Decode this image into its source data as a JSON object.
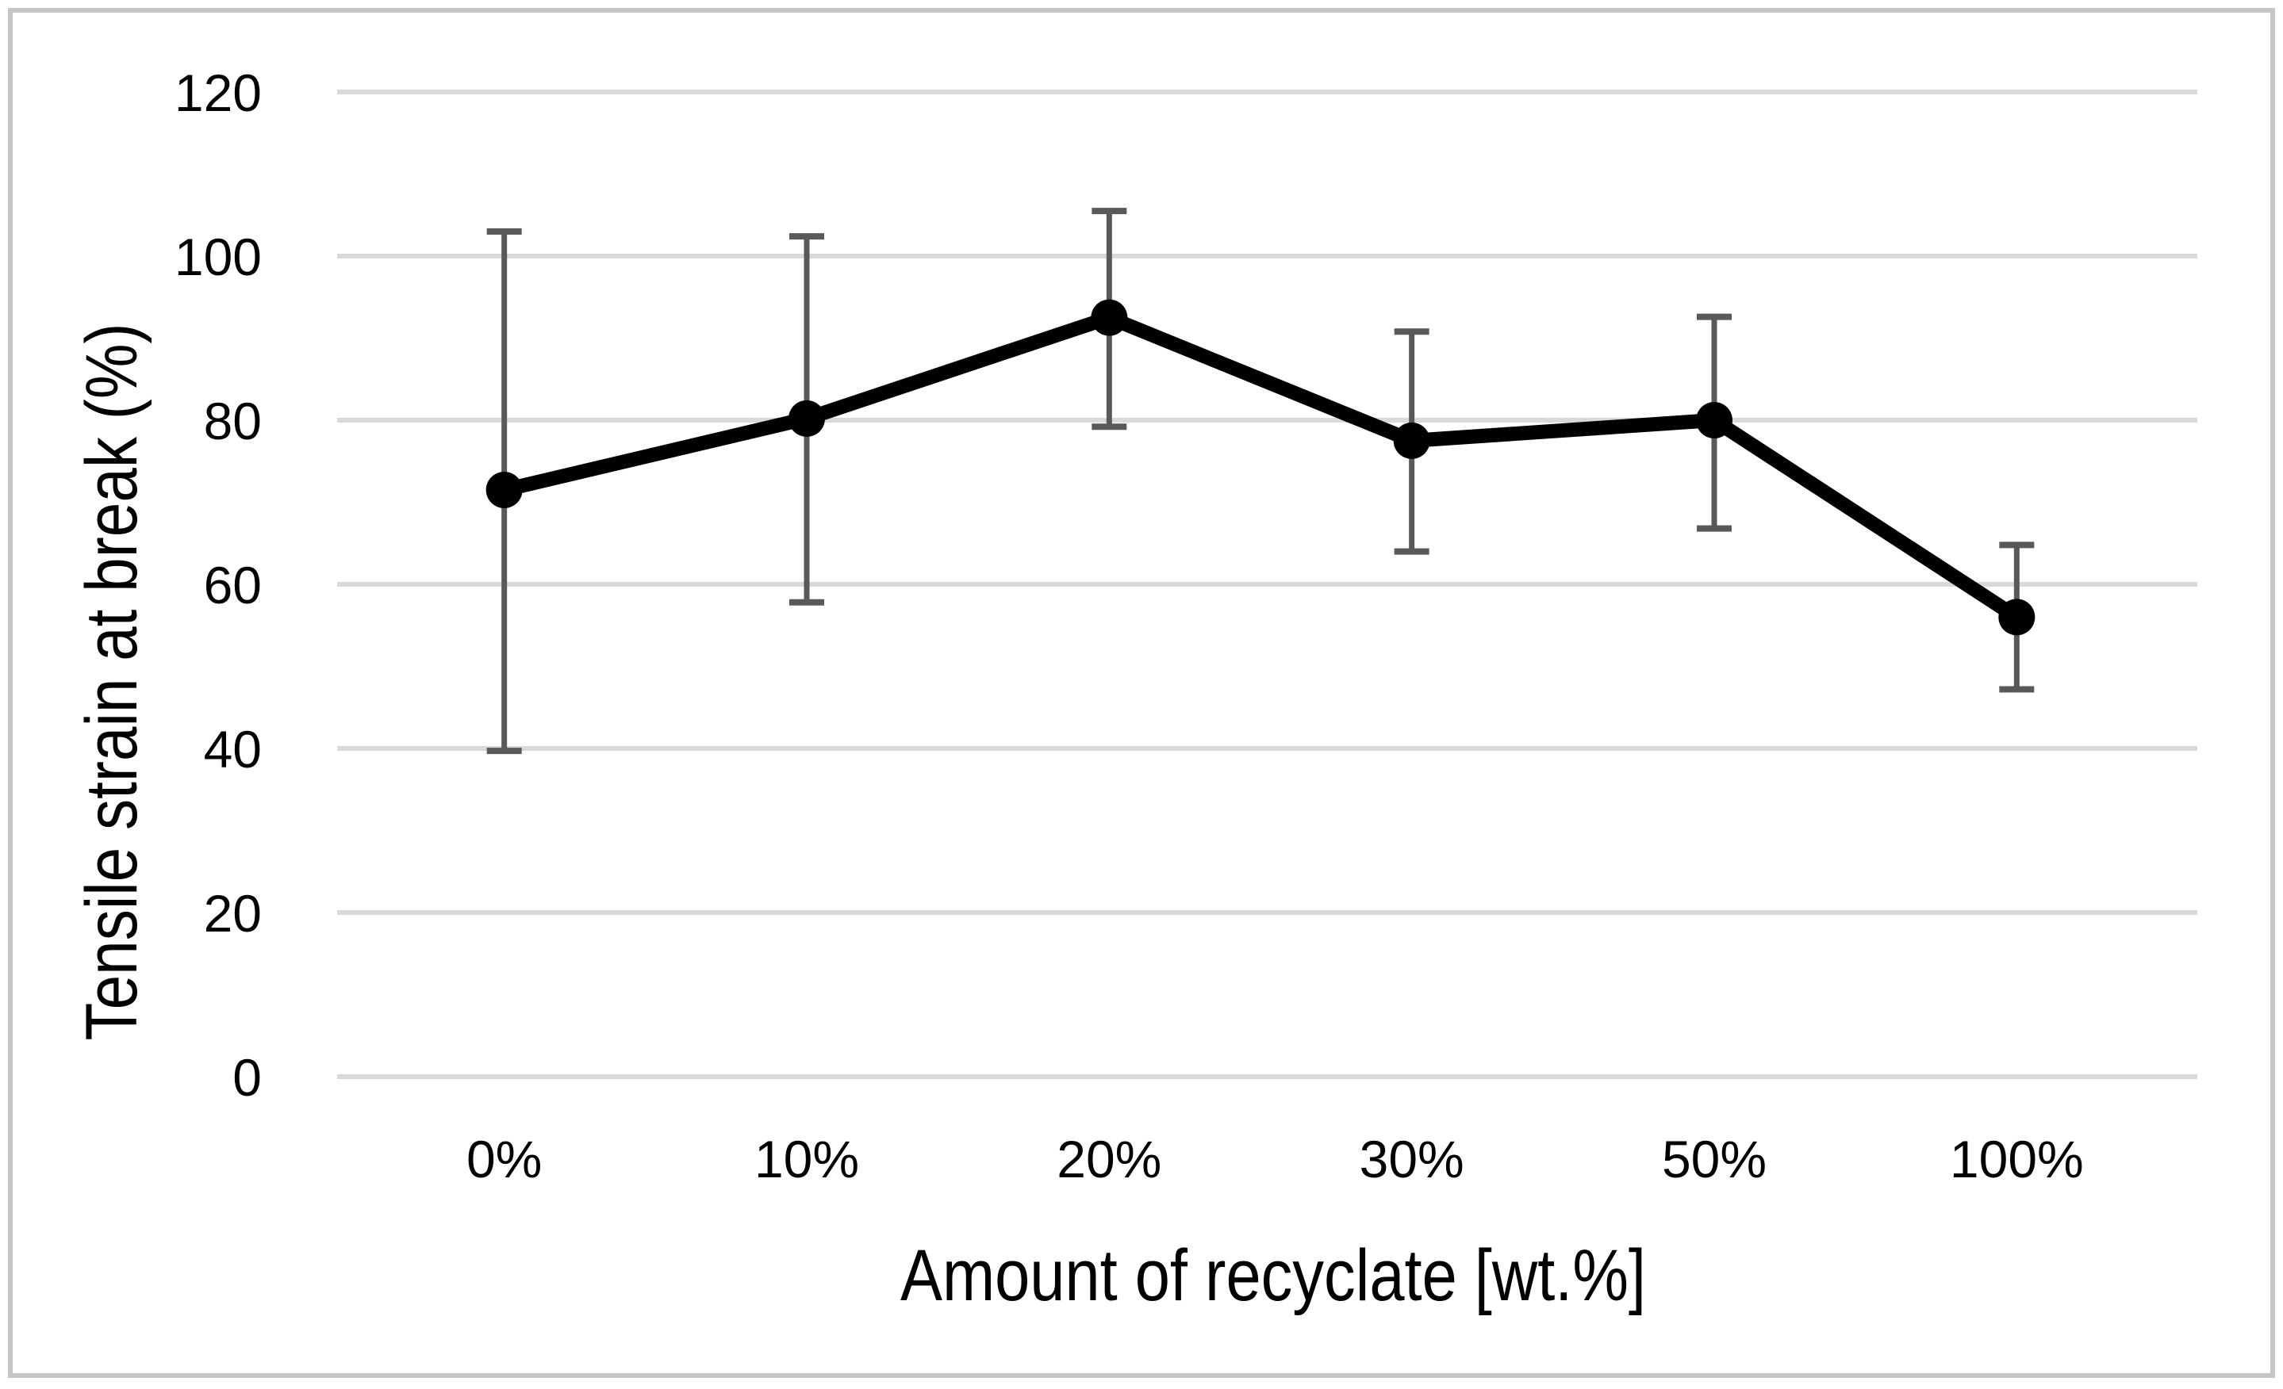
{
  "figure": {
    "background": "#FFFFFF",
    "border_color": "#C6C6C6",
    "border_width": 6
  },
  "chart_data": {
    "type": "line",
    "title": "",
    "xlabel": "Amount of recyclate [wt.%]",
    "ylabel": "Tensile strain at break (%)",
    "categories": [
      "0%",
      "10%",
      "20%",
      "30%",
      "50%",
      "100%"
    ],
    "series": [
      {
        "name": "Tensile strain at break",
        "values": [
          71.5,
          80.2,
          92.5,
          77.5,
          80.0,
          56.0
        ],
        "error_plus": [
          31.5,
          22.2,
          13.0,
          13.3,
          12.6,
          8.8
        ],
        "error_minus": [
          31.8,
          22.4,
          13.3,
          13.5,
          13.2,
          8.8
        ],
        "color": "#000000",
        "marker": "circle",
        "line_width": 18,
        "marker_radius": 23
      }
    ],
    "yticks": [
      0,
      20,
      40,
      60,
      80,
      100,
      120
    ],
    "ylim": [
      0,
      120
    ],
    "grid": "horizontal",
    "gridline_color": "#D9D9D9",
    "error_bar_color": "#595959",
    "tick_label_color": "#000000",
    "legend": "none"
  }
}
